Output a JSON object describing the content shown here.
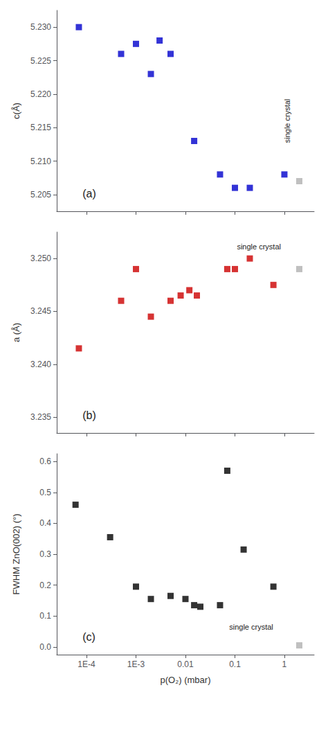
{
  "chart_data": [
    {
      "type": "scatter",
      "ylabel": "c(Å)",
      "log": "x",
      "grid": false,
      "tick_labels": "y",
      "xlim": [
        2.5e-05,
        4.0
      ],
      "xticks": [
        {
          "value": 0.0001,
          "label": "1E-4"
        },
        {
          "value": 0.001,
          "label": "1E-3"
        },
        0.01,
        0.1,
        1
      ],
      "ylim": [
        5.2025,
        5.2325
      ],
      "yticks": [
        5.205,
        {
          "value": 5.21,
          "label": "5.210"
        },
        5.215,
        {
          "value": 5.22,
          "label": "5.220"
        },
        5.225,
        {
          "value": 5.23,
          "label": "5.230"
        }
      ],
      "series": [
        {
          "x": [
            7e-05,
            0.0005,
            0.001,
            0.002,
            0.003,
            0.005,
            0.015,
            0.05,
            0.1,
            0.2,
            1.0
          ],
          "values": [
            5.23,
            5.226,
            5.2275,
            5.223,
            5.228,
            5.226,
            5.213,
            5.208,
            5.206,
            5.206,
            5.208
          ],
          "color": "#0000cc",
          "marker": "square"
        },
        {
          "x": [
            2.0
          ],
          "values": [
            5.207
          ],
          "color": "#b0b0b0",
          "marker": "square"
        }
      ],
      "annotations": [
        "(a)",
        "single crystal"
      ]
    },
    {
      "type": "scatter",
      "ylabel": "a (Å)",
      "log": "x",
      "grid": false,
      "tick_labels": "y",
      "xlim": [
        2.5e-05,
        4.0
      ],
      "xticks": [
        {
          "value": 0.0001,
          "label": "1E-4"
        },
        {
          "value": 0.001,
          "label": "1E-3"
        },
        0.01,
        0.1,
        1
      ],
      "ylim": [
        3.2335,
        3.2525
      ],
      "yticks": [
        3.235,
        {
          "value": 3.24,
          "label": "3.240"
        },
        3.245,
        {
          "value": 3.25,
          "label": "3.250"
        }
      ],
      "series": [
        {
          "x": [
            7e-05,
            0.0005,
            0.001,
            0.002,
            0.005,
            0.008,
            0.012,
            0.017,
            0.07,
            0.1,
            0.2,
            0.6
          ],
          "values": [
            3.2415,
            3.246,
            3.249,
            3.2445,
            3.246,
            3.2465,
            3.247,
            3.2465,
            3.249,
            3.249,
            3.25,
            3.2475
          ],
          "color": "#cc0000",
          "marker": "square"
        },
        {
          "x": [
            2.0
          ],
          "values": [
            3.249
          ],
          "color": "#b0b0b0",
          "marker": "square"
        }
      ],
      "annotations": [
        "(b)",
        "single crystal"
      ]
    },
    {
      "type": "scatter",
      "xlabel": "p(O₂) (mbar)",
      "ylabel": "FWHM ZnO(002) (°)",
      "log": "x",
      "grid": false,
      "xlim": [
        2.5e-05,
        4.0
      ],
      "xticks": [
        {
          "value": 0.0001,
          "label": "1E-4"
        },
        {
          "value": 0.001,
          "label": "1E-3"
        },
        0.01,
        0.1,
        1
      ],
      "ylim": [
        -0.025,
        0.625
      ],
      "yticks": [
        {
          "value": 0.0,
          "label": "0.0"
        },
        0.1,
        0.2,
        0.3,
        0.4,
        0.5,
        0.6
      ],
      "series": [
        {
          "x": [
            6e-05,
            0.0003,
            0.001,
            0.002,
            0.005,
            0.01,
            0.015,
            0.02,
            0.05,
            0.07,
            0.15,
            0.6
          ],
          "values": [
            0.46,
            0.355,
            0.195,
            0.155,
            0.165,
            0.155,
            0.135,
            0.13,
            0.135,
            0.57,
            0.315,
            0.195
          ],
          "color": "#000000",
          "marker": "square"
        },
        {
          "x": [
            2.0
          ],
          "values": [
            0.005
          ],
          "color": "#b0b0b0",
          "marker": "square"
        }
      ],
      "annotations": [
        "(c)",
        "single crystal"
      ]
    }
  ]
}
